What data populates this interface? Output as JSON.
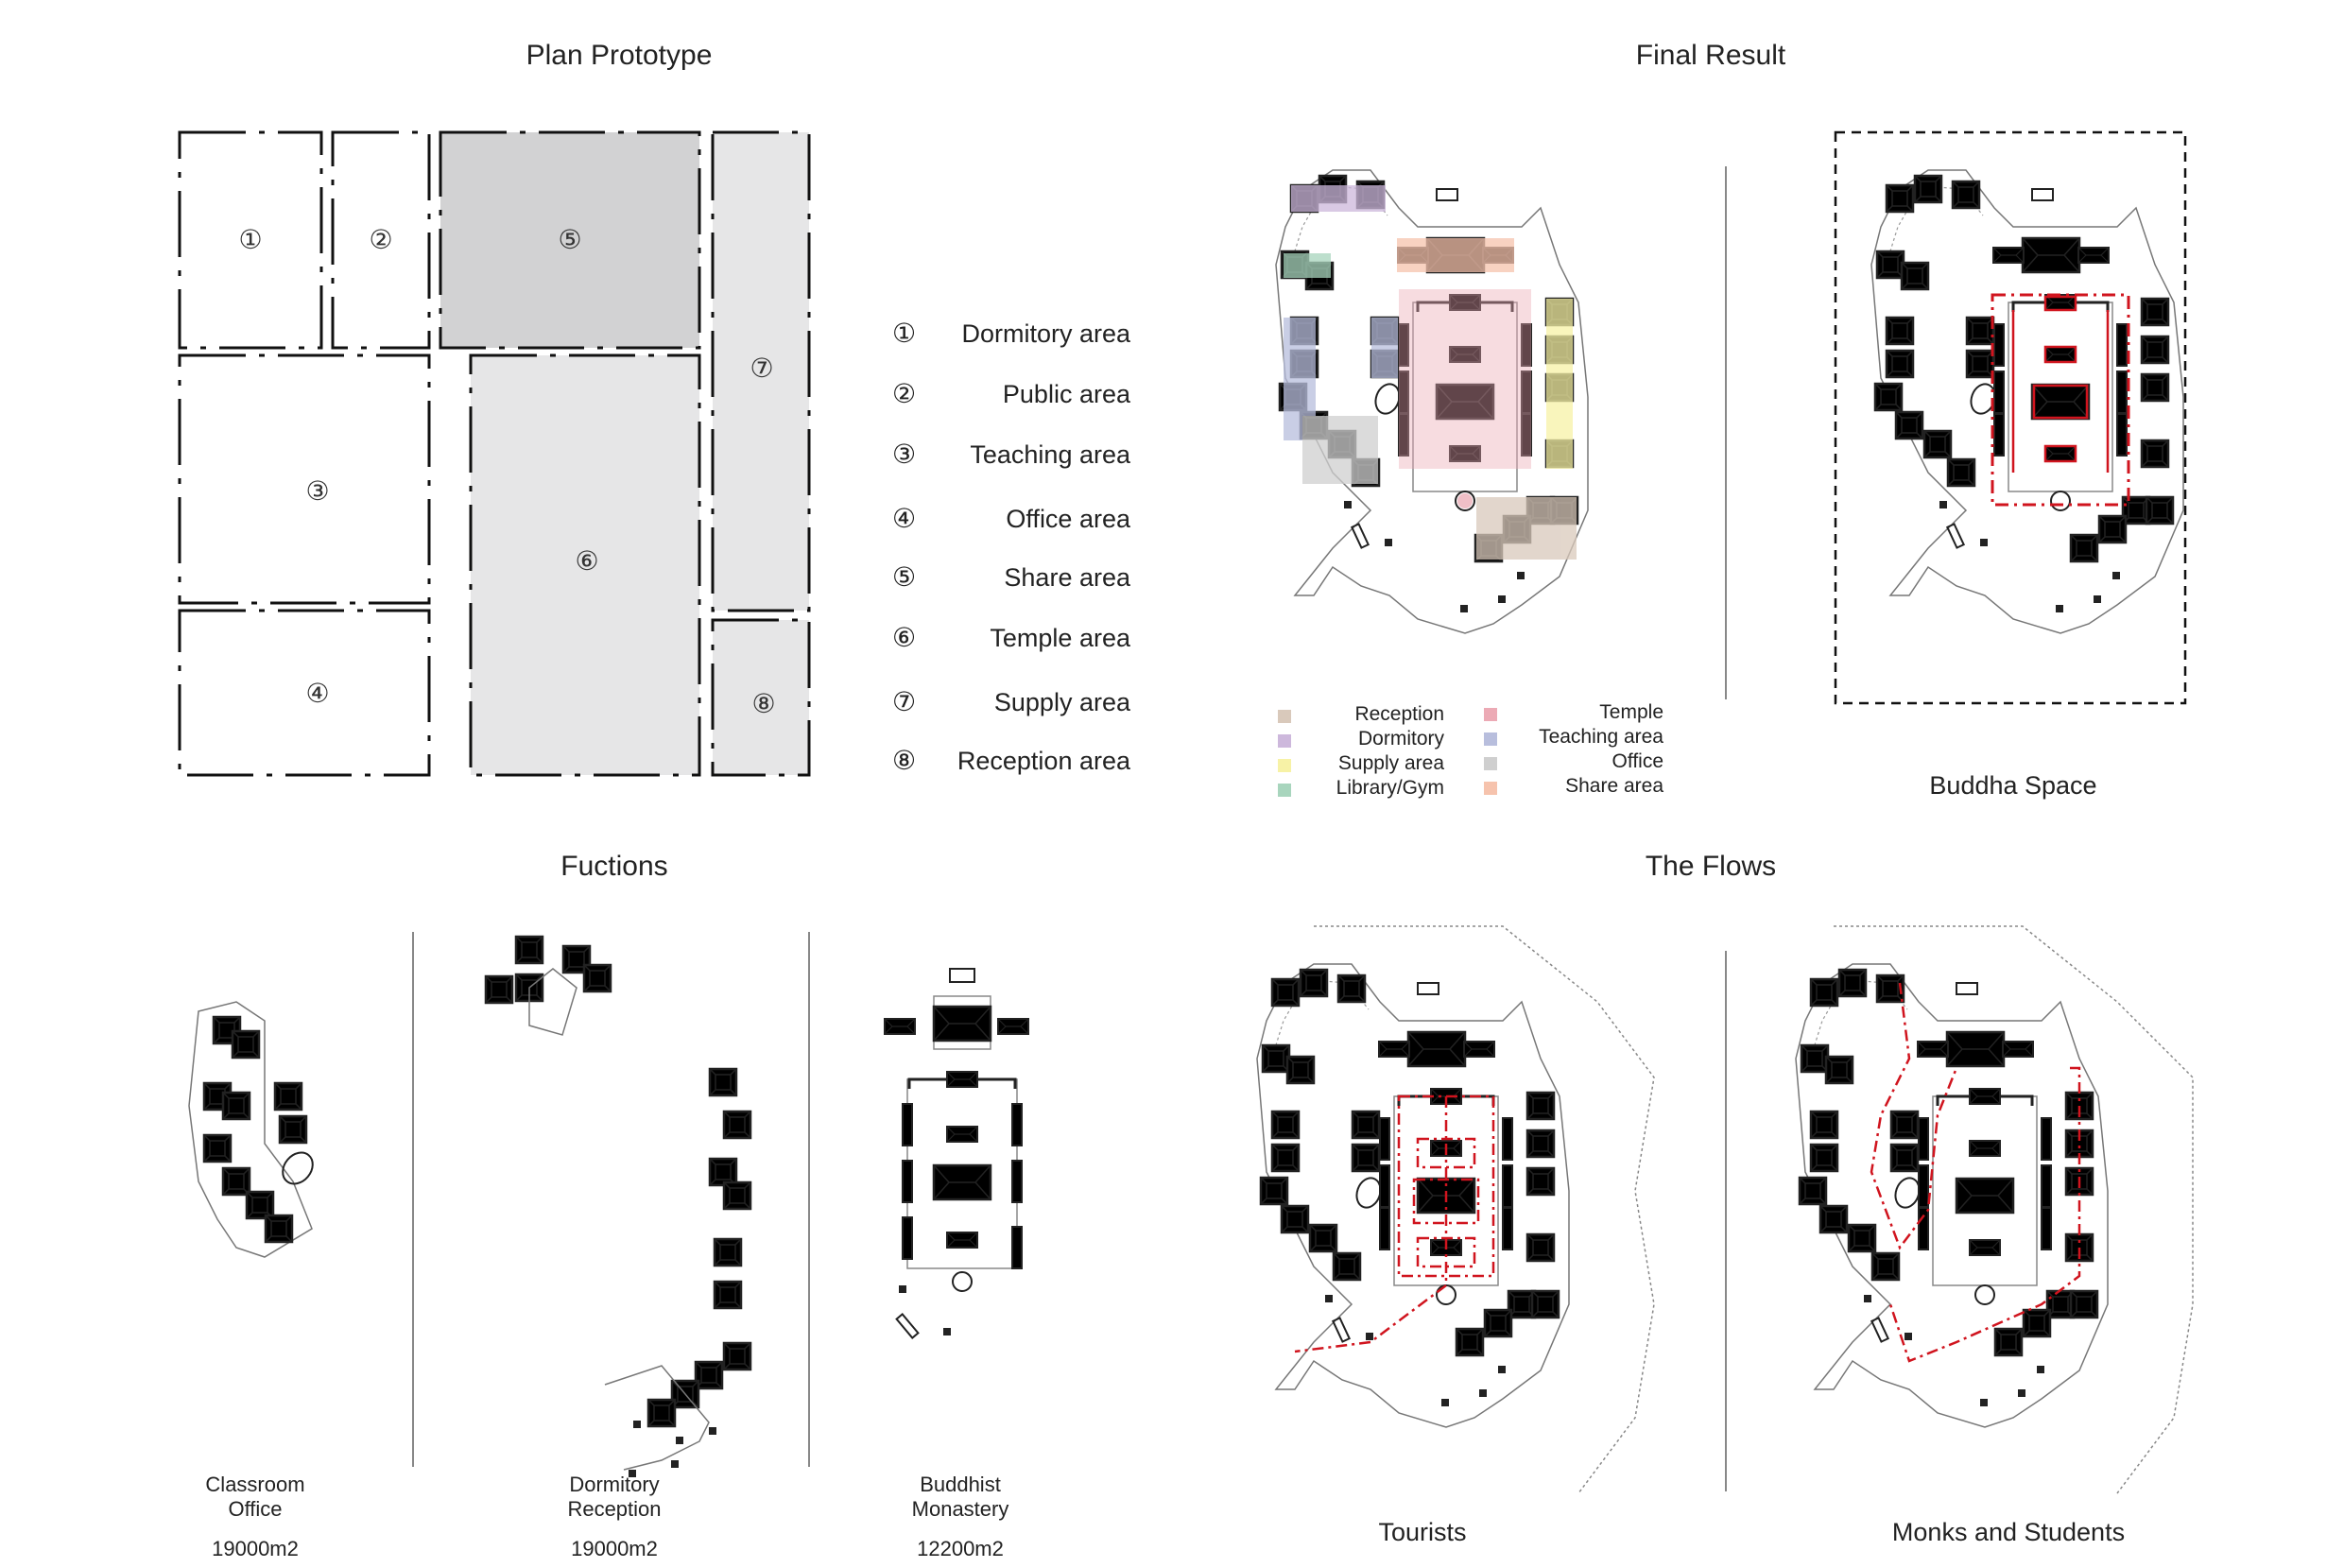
{
  "sections": {
    "plan_prototype": "Plan Prototype",
    "final_result": "Final Result",
    "functions": "Fuctions",
    "flows": "The Flows"
  },
  "zone_legend": [
    {
      "num": "①",
      "label": "Dormitory area"
    },
    {
      "num": "②",
      "label": "Public area"
    },
    {
      "num": "③",
      "label": "Teaching area"
    },
    {
      "num": "④",
      "label": "Office area"
    },
    {
      "num": "⑤",
      "label": "Share area"
    },
    {
      "num": "⑥",
      "label": "Temple area"
    },
    {
      "num": "⑦",
      "label": "Supply area"
    },
    {
      "num": "⑧",
      "label": "Reception area"
    }
  ],
  "color_key": {
    "left": [
      {
        "label": "Reception",
        "color": "#d9c9bb"
      },
      {
        "label": "Dormitory",
        "color": "#cdb8dc"
      },
      {
        "label": "Supply area",
        "color": "#f7f2a6"
      },
      {
        "label": "Library/Gym",
        "color": "#a8d5bd"
      }
    ],
    "right": [
      {
        "label": "Temple",
        "color": "#ecaab5"
      },
      {
        "label": "Teaching area",
        "color": "#b8bedd"
      },
      {
        "label": "Office",
        "color": "#cfcfcf"
      },
      {
        "label": "Share area",
        "color": "#f6c3ad"
      }
    ]
  },
  "captions": {
    "buddha_space": "Buddha Space",
    "tourists": "Tourists",
    "monks": "Monks and Students"
  },
  "functions": [
    {
      "line1": "Classroom",
      "line2": "Office",
      "area": "19000m2"
    },
    {
      "line1": "Dormitory",
      "line2": "Reception",
      "area": "19000m2"
    },
    {
      "line1": "Buddhist",
      "line2": "Monastery",
      "area": "12200m2"
    }
  ],
  "colors": {
    "flow_red": "#d0141e",
    "zone_gray_dark": "#d2d2d3",
    "zone_gray_light": "#e6e6e7"
  }
}
